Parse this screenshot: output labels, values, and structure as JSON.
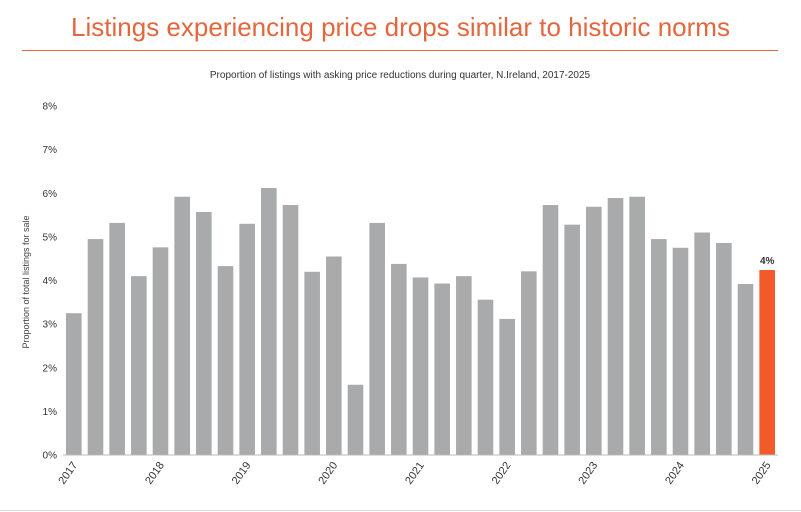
{
  "page": {
    "headline": "Listings experiencing price drops similar to historic norms"
  },
  "colors": {
    "accent": "#e4663c",
    "bar": "#a9aaac",
    "highlight": "#f15a29"
  },
  "chart_data": {
    "type": "bar",
    "title": "Proportion of listings with asking price reductions during quarter, N.Ireland, 2017-2025",
    "xlabel": "",
    "ylabel": "Proportion of total listings for sale",
    "ylim": [
      0,
      8
    ],
    "yticks": [
      "0%",
      "1%",
      "2%",
      "3%",
      "4%",
      "5%",
      "6%",
      "7%",
      "8%"
    ],
    "grid": false,
    "legend": "none",
    "categories": [
      "2017 Q1",
      "2017 Q2",
      "2017 Q3",
      "2017 Q4",
      "2018 Q1",
      "2018 Q2",
      "2018 Q3",
      "2018 Q4",
      "2019 Q1",
      "2019 Q2",
      "2019 Q3",
      "2019 Q4",
      "2020 Q1",
      "2020 Q2",
      "2020 Q3",
      "2020 Q4",
      "2021 Q1",
      "2021 Q2",
      "2021 Q3",
      "2021 Q4",
      "2022 Q1",
      "2022 Q2",
      "2022 Q3",
      "2022 Q4",
      "2023 Q1",
      "2023 Q2",
      "2023 Q3",
      "2023 Q4",
      "2024 Q1",
      "2024 Q2",
      "2024 Q3",
      "2024 Q4",
      "2025 Q1"
    ],
    "values": [
      3.25,
      4.95,
      5.32,
      4.1,
      4.76,
      5.92,
      5.57,
      4.33,
      5.3,
      6.12,
      5.73,
      4.2,
      4.55,
      1.61,
      5.32,
      4.38,
      4.07,
      3.93,
      4.1,
      3.56,
      3.12,
      4.21,
      5.73,
      5.28,
      5.69,
      5.89,
      5.92,
      4.95,
      4.75,
      5.1,
      4.86,
      3.92,
      4.24
    ],
    "x_tick_labels": [
      {
        "label": "2017",
        "index": 0
      },
      {
        "label": "2018",
        "index": 4
      },
      {
        "label": "2019",
        "index": 8
      },
      {
        "label": "2020",
        "index": 12
      },
      {
        "label": "2021",
        "index": 16
      },
      {
        "label": "2022",
        "index": 20
      },
      {
        "label": "2023",
        "index": 24
      },
      {
        "label": "2024",
        "index": 28
      },
      {
        "label": "2025",
        "index": 32
      }
    ],
    "highlight_index": 32,
    "annotation": {
      "index": 32,
      "text": "4%"
    }
  }
}
